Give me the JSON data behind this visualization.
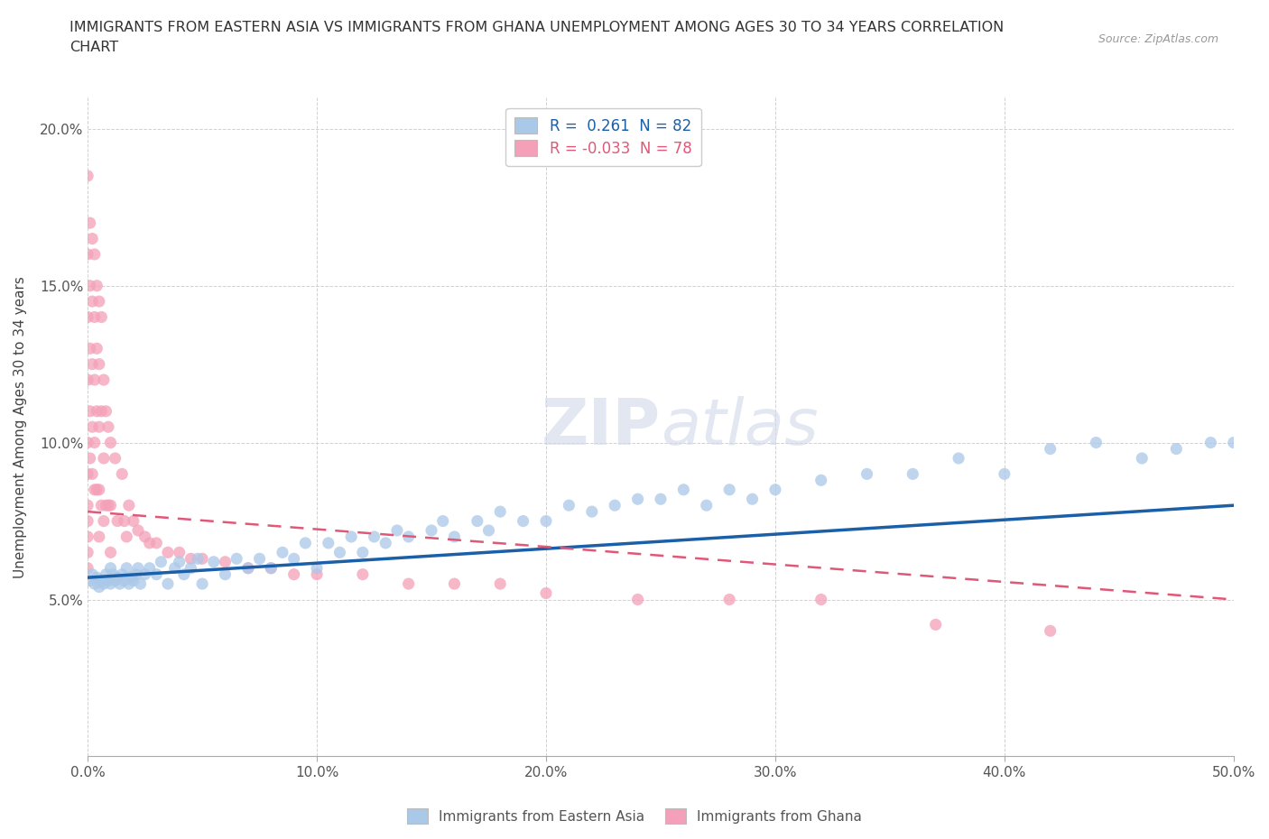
{
  "title": "IMMIGRANTS FROM EASTERN ASIA VS IMMIGRANTS FROM GHANA UNEMPLOYMENT AMONG AGES 30 TO 34 YEARS CORRELATION\nCHART",
  "source": "Source: ZipAtlas.com",
  "ylabel": "Unemployment Among Ages 30 to 34 years",
  "xlim": [
    0.0,
    0.5
  ],
  "ylim": [
    0.0,
    0.21
  ],
  "xticks": [
    0.0,
    0.1,
    0.2,
    0.3,
    0.4,
    0.5
  ],
  "yticks": [
    0.0,
    0.05,
    0.1,
    0.15,
    0.2
  ],
  "xticklabels": [
    "0.0%",
    "10.0%",
    "20.0%",
    "30.0%",
    "40.0%",
    "50.0%"
  ],
  "yticklabels": [
    "",
    "5.0%",
    "10.0%",
    "15.0%",
    "20.0%"
  ],
  "legend_label1": "Immigrants from Eastern Asia",
  "legend_label2": "Immigrants from Ghana",
  "R1": 0.261,
  "N1": 82,
  "R2": -0.033,
  "N2": 78,
  "color_blue": "#aac8e8",
  "color_pink": "#f4a0b8",
  "line_color_blue": "#1a5fa8",
  "line_color_pink": "#e05878",
  "grid_color": "#cccccc",
  "background_color": "#ffffff",
  "ea_x": [
    0.001,
    0.002,
    0.003,
    0.004,
    0.005,
    0.006,
    0.007,
    0.008,
    0.009,
    0.01,
    0.01,
    0.011,
    0.012,
    0.013,
    0.014,
    0.015,
    0.016,
    0.017,
    0.018,
    0.019,
    0.02,
    0.021,
    0.022,
    0.023,
    0.025,
    0.027,
    0.03,
    0.032,
    0.035,
    0.038,
    0.04,
    0.042,
    0.045,
    0.048,
    0.05,
    0.055,
    0.06,
    0.065,
    0.07,
    0.075,
    0.08,
    0.085,
    0.09,
    0.095,
    0.1,
    0.105,
    0.11,
    0.115,
    0.12,
    0.125,
    0.13,
    0.135,
    0.14,
    0.15,
    0.155,
    0.16,
    0.17,
    0.175,
    0.18,
    0.19,
    0.2,
    0.21,
    0.22,
    0.23,
    0.24,
    0.25,
    0.26,
    0.27,
    0.28,
    0.29,
    0.3,
    0.32,
    0.34,
    0.36,
    0.38,
    0.4,
    0.42,
    0.44,
    0.46,
    0.475,
    0.49,
    0.5
  ],
  "ea_y": [
    0.056,
    0.058,
    0.055,
    0.057,
    0.054,
    0.056,
    0.055,
    0.058,
    0.056,
    0.055,
    0.06,
    0.058,
    0.056,
    0.057,
    0.055,
    0.058,
    0.056,
    0.06,
    0.055,
    0.057,
    0.056,
    0.058,
    0.06,
    0.055,
    0.058,
    0.06,
    0.058,
    0.062,
    0.055,
    0.06,
    0.062,
    0.058,
    0.06,
    0.063,
    0.055,
    0.062,
    0.058,
    0.063,
    0.06,
    0.063,
    0.06,
    0.065,
    0.063,
    0.068,
    0.06,
    0.068,
    0.065,
    0.07,
    0.065,
    0.07,
    0.068,
    0.072,
    0.07,
    0.072,
    0.075,
    0.07,
    0.075,
    0.072,
    0.078,
    0.075,
    0.075,
    0.08,
    0.078,
    0.08,
    0.082,
    0.082,
    0.085,
    0.08,
    0.085,
    0.082,
    0.085,
    0.088,
    0.09,
    0.09,
    0.095,
    0.09,
    0.098,
    0.1,
    0.095,
    0.098,
    0.1,
    0.1
  ],
  "gh_x": [
    0.0,
    0.0,
    0.0,
    0.0,
    0.0,
    0.0,
    0.0,
    0.0,
    0.0,
    0.0,
    0.0,
    0.001,
    0.001,
    0.001,
    0.001,
    0.001,
    0.002,
    0.002,
    0.002,
    0.002,
    0.002,
    0.003,
    0.003,
    0.003,
    0.003,
    0.003,
    0.004,
    0.004,
    0.004,
    0.004,
    0.005,
    0.005,
    0.005,
    0.005,
    0.005,
    0.006,
    0.006,
    0.006,
    0.007,
    0.007,
    0.007,
    0.008,
    0.008,
    0.009,
    0.009,
    0.01,
    0.01,
    0.01,
    0.012,
    0.013,
    0.015,
    0.016,
    0.017,
    0.018,
    0.02,
    0.022,
    0.025,
    0.027,
    0.03,
    0.035,
    0.04,
    0.045,
    0.05,
    0.06,
    0.07,
    0.08,
    0.09,
    0.1,
    0.12,
    0.14,
    0.16,
    0.18,
    0.2,
    0.24,
    0.28,
    0.32,
    0.37,
    0.42
  ],
  "gh_y": [
    0.185,
    0.16,
    0.14,
    0.12,
    0.1,
    0.09,
    0.08,
    0.075,
    0.07,
    0.065,
    0.06,
    0.17,
    0.15,
    0.13,
    0.11,
    0.095,
    0.165,
    0.145,
    0.125,
    0.105,
    0.09,
    0.16,
    0.14,
    0.12,
    0.1,
    0.085,
    0.15,
    0.13,
    0.11,
    0.085,
    0.145,
    0.125,
    0.105,
    0.085,
    0.07,
    0.14,
    0.11,
    0.08,
    0.12,
    0.095,
    0.075,
    0.11,
    0.08,
    0.105,
    0.08,
    0.1,
    0.08,
    0.065,
    0.095,
    0.075,
    0.09,
    0.075,
    0.07,
    0.08,
    0.075,
    0.072,
    0.07,
    0.068,
    0.068,
    0.065,
    0.065,
    0.063,
    0.063,
    0.062,
    0.06,
    0.06,
    0.058,
    0.058,
    0.058,
    0.055,
    0.055,
    0.055,
    0.052,
    0.05,
    0.05,
    0.05,
    0.042,
    0.04
  ],
  "blue_line_x": [
    0.0,
    0.5
  ],
  "blue_line_y": [
    0.057,
    0.08
  ],
  "pink_line_x": [
    0.0,
    0.5
  ],
  "pink_line_y": [
    0.078,
    0.05
  ]
}
